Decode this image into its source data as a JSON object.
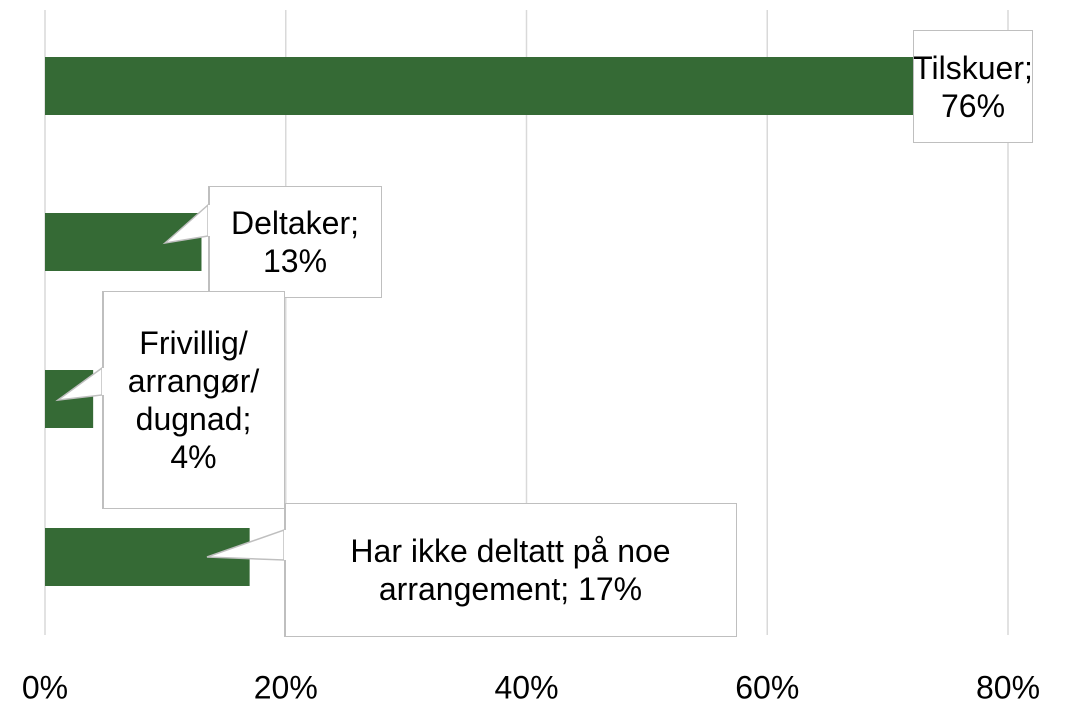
{
  "chart_data": {
    "type": "barh",
    "values": [
      76,
      13,
      4,
      17
    ],
    "value_labels": [
      "Tilskuer;\n76%",
      "Deltaker;\n13%",
      "Frivillig/\narrangør/\ndugnad;\n4%",
      "Har ikke deltatt på noe\narrangement; 17%"
    ],
    "color": "#356a35",
    "xlim": [
      0,
      80
    ],
    "xticks": [
      {
        "value": 0,
        "label": "0%"
      },
      {
        "value": 20,
        "label": "20%"
      },
      {
        "value": 40,
        "label": "40%"
      },
      {
        "value": 60,
        "label": "60%"
      },
      {
        "value": 80,
        "label": "80%"
      }
    ],
    "grid": true
  }
}
